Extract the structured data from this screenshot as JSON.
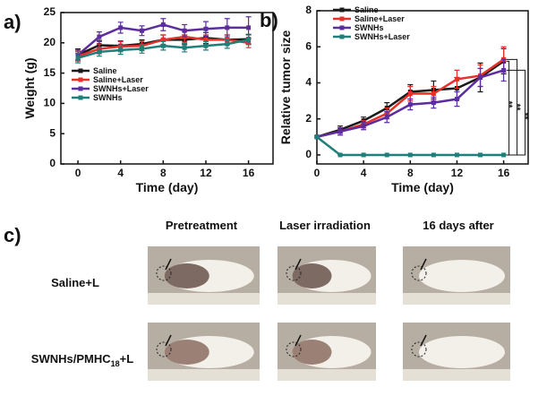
{
  "chart_data": [
    {
      "type": "line",
      "panel": "a)",
      "xlabel": "Time (day)",
      "ylabel": "Weight (g)",
      "x": [
        0,
        2,
        4,
        6,
        8,
        10,
        12,
        14,
        16
      ],
      "xlim": [
        -1.6,
        18.3
      ],
      "xticks": [
        0,
        4,
        8,
        12,
        16
      ],
      "ylim": [
        0,
        25
      ],
      "yticks": [
        0,
        5,
        10,
        15,
        20,
        25
      ],
      "legend": "lower-left",
      "series": [
        {
          "name": "Saline",
          "color": "#1a1a1a",
          "values": [
            18,
            19.6,
            19.5,
            19.8,
            20.5,
            20.5,
            20.8,
            20.5,
            20.6
          ],
          "errors": [
            1,
            0.8,
            0.8,
            0.7,
            0.8,
            0.8,
            0.9,
            0.8,
            0.8
          ]
        },
        {
          "name": "Saline+Laser",
          "color": "#e8302a",
          "values": [
            17.8,
            19,
            19.4,
            19.5,
            20.5,
            21,
            20.5,
            20.5,
            20
          ],
          "errors": [
            0.8,
            0.8,
            0.8,
            0.8,
            0.8,
            0.9,
            0.8,
            0.8,
            0.8
          ]
        },
        {
          "name": "SWNHs+Laser",
          "color": "#5b2d9e",
          "values": [
            18,
            21,
            22.5,
            22,
            23,
            22,
            22.3,
            22.5,
            22.5
          ],
          "errors": [
            0.8,
            0.8,
            0.9,
            0.8,
            1,
            1,
            1.2,
            1.5,
            1.8
          ]
        },
        {
          "name": "SWNHs",
          "color": "#1f7f7a",
          "values": [
            17.5,
            18.5,
            18.8,
            19,
            19.5,
            19.2,
            19.5,
            19.8,
            20.5
          ],
          "errors": [
            0.8,
            0.7,
            0.7,
            0.7,
            0.7,
            0.7,
            0.7,
            0.7,
            0.8
          ]
        }
      ]
    },
    {
      "type": "line",
      "panel": "b)",
      "xlabel": "Time (day)",
      "ylabel": "Relative tumor size",
      "x": [
        0,
        2,
        4,
        6,
        8,
        10,
        12,
        14,
        16
      ],
      "xlim": [
        0,
        18.1
      ],
      "xticks": [
        0,
        4,
        8,
        12,
        16
      ],
      "ylim": [
        -0.5,
        8
      ],
      "yticks": [
        0,
        2,
        4,
        6,
        8
      ],
      "legend": "upper-left",
      "annotations": [
        "**",
        "**",
        "**"
      ],
      "series": [
        {
          "name": "Saline",
          "color": "#1a1a1a",
          "values": [
            1,
            1.4,
            1.9,
            2.6,
            3.5,
            3.6,
            3.7,
            4.3,
            5.2
          ],
          "errors": [
            0.05,
            0.2,
            0.2,
            0.3,
            0.4,
            0.5,
            0.6,
            0.8,
            0.7
          ]
        },
        {
          "name": "Saline+Laser",
          "color": "#e8302a",
          "values": [
            1,
            1.3,
            1.7,
            2.3,
            3.4,
            3.4,
            4.2,
            4.4,
            5.3
          ],
          "errors": [
            0.05,
            0.2,
            0.2,
            0.3,
            0.4,
            0.4,
            0.5,
            0.6,
            0.7
          ]
        },
        {
          "name": "SWNHs",
          "color": "#5b2d9e",
          "values": [
            1,
            1.3,
            1.6,
            2.1,
            2.8,
            2.9,
            3.1,
            4.3,
            4.7
          ],
          "errors": [
            0.05,
            0.2,
            0.2,
            0.3,
            0.3,
            0.3,
            0.4,
            0.5,
            0.6
          ]
        },
        {
          "name": "SWNHs+Laser",
          "color": "#1f7f7a",
          "values": [
            1,
            0,
            0,
            0,
            0,
            0,
            0,
            0,
            0
          ],
          "errors": [
            0.05,
            0,
            0,
            0,
            0,
            0,
            0,
            0,
            0
          ]
        }
      ]
    }
  ],
  "panel_c": {
    "label": "c)",
    "columns": [
      "Pretreatment",
      "Laser irradiation",
      "16 days after"
    ],
    "rows": [
      {
        "parts": [
          "Saline+L"
        ]
      },
      {
        "parts": [
          "SWNHs/PMHC",
          "18",
          "+L"
        ]
      }
    ]
  }
}
